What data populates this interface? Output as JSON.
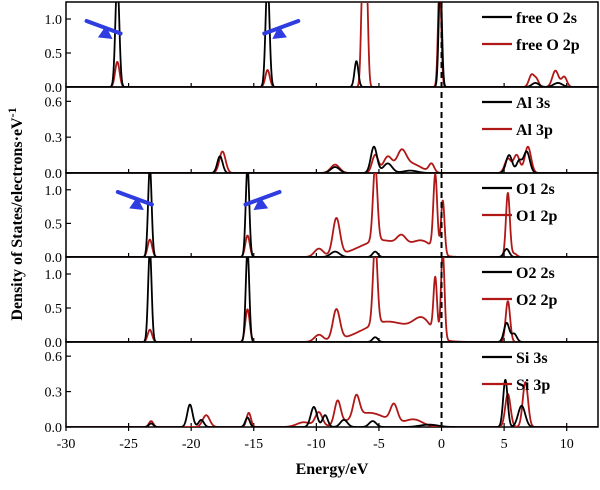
{
  "chart_data": {
    "type": "line",
    "xlabel": "Energy/eV",
    "ylabel": "Density of States/electrons·eV",
    "ylabel_exponent": "-1",
    "xlim": [
      -30,
      12.5
    ],
    "x_ticks": [
      -30,
      -25,
      -20,
      -15,
      -10,
      -5,
      0,
      5,
      10
    ],
    "x_tick_labels": [
      "-30",
      "-25",
      "-20",
      "-15",
      "-10",
      "-5",
      "0",
      "5",
      "10"
    ],
    "fermi_level": 0,
    "colors": {
      "s": "#000000",
      "p": "#b01818",
      "arrow": "#2f3ce0"
    },
    "panels": [
      {
        "id": "free-o",
        "ylim": [
          0,
          1.25
        ],
        "y_ticks": [
          0.0,
          0.5,
          1.0
        ],
        "y_tick_labels": [
          "0.0",
          "0.5",
          "1.0"
        ],
        "legend": [
          "free O 2s",
          "free O 2p"
        ],
        "arrows_at": [
          -25.8,
          -14.0
        ],
        "s_peaks": [
          {
            "x": -25.9,
            "h": 1.6,
            "w": 0.22
          },
          {
            "x": -13.9,
            "h": 1.6,
            "w": 0.22
          },
          {
            "x": -6.8,
            "h": 0.38,
            "w": 0.22
          },
          {
            "x": -0.1,
            "h": 1.6,
            "w": 0.18
          }
        ],
        "p_peaks": [
          {
            "x": -25.9,
            "h": 0.37,
            "w": 0.25
          },
          {
            "x": -13.9,
            "h": 0.25,
            "w": 0.25
          },
          {
            "x": -6.3,
            "h": 1.6,
            "w": 0.18
          },
          {
            "x": -6.0,
            "h": 1.6,
            "w": 0.18
          },
          {
            "x": -0.15,
            "h": 1.6,
            "w": 0.18
          },
          {
            "x": 7.2,
            "h": 0.18,
            "w": 0.3
          },
          {
            "x": 7.6,
            "h": 0.1,
            "w": 0.25
          },
          {
            "x": 9.1,
            "h": 0.24,
            "w": 0.35
          },
          {
            "x": 9.8,
            "h": 0.15,
            "w": 0.3
          }
        ],
        "s_bumps": [
          {
            "x": 7.5,
            "h": 0.06,
            "w": 0.4
          },
          {
            "x": 9.3,
            "h": 0.06,
            "w": 0.5
          }
        ],
        "p_bumps": []
      },
      {
        "id": "al",
        "ylim": [
          0,
          0.72
        ],
        "y_ticks": [
          0.0,
          0.3,
          0.6
        ],
        "y_tick_labels": [
          "0.0",
          "0.3",
          "0.6"
        ],
        "legend": [
          "Al 3s",
          "Al 3p"
        ],
        "arrows_at": [],
        "s_peaks": [
          {
            "x": -17.7,
            "h": 0.14,
            "w": 0.3
          },
          {
            "x": -8.5,
            "h": 0.05,
            "w": 0.5
          },
          {
            "x": -5.4,
            "h": 0.22,
            "w": 0.35
          },
          {
            "x": -4.3,
            "h": 0.08,
            "w": 0.5
          },
          {
            "x": -2.5,
            "h": 0.02,
            "w": 0.8
          },
          {
            "x": 5.4,
            "h": 0.15,
            "w": 0.35
          },
          {
            "x": 6.2,
            "h": 0.1,
            "w": 0.3
          },
          {
            "x": 6.8,
            "h": 0.18,
            "w": 0.35
          }
        ],
        "p_peaks": [
          {
            "x": -17.5,
            "h": 0.18,
            "w": 0.35
          },
          {
            "x": -8.5,
            "h": 0.07,
            "w": 0.5
          },
          {
            "x": -5.3,
            "h": 0.15,
            "w": 0.35
          },
          {
            "x": -4.3,
            "h": 0.13,
            "w": 0.5
          },
          {
            "x": -3.2,
            "h": 0.14,
            "w": 0.5
          },
          {
            "x": -0.8,
            "h": 0.07,
            "w": 0.3
          },
          {
            "x": 5.3,
            "h": 0.12,
            "w": 0.35
          },
          {
            "x": 6.0,
            "h": 0.15,
            "w": 0.35
          },
          {
            "x": 6.9,
            "h": 0.22,
            "w": 0.35
          }
        ],
        "s_bumps": [],
        "p_bumps": [
          {
            "x": -2.5,
            "h": 0.08,
            "w": 1.2
          }
        ]
      },
      {
        "id": "o1",
        "ylim": [
          0,
          1.25
        ],
        "y_ticks": [
          0.0,
          0.5,
          1.0
        ],
        "y_tick_labels": [
          "0.0",
          "0.5",
          "1.0"
        ],
        "legend": [
          "O1 2s",
          "O1 2p"
        ],
        "arrows_at": [
          -23.3,
          -15.5
        ],
        "s_peaks": [
          {
            "x": -23.3,
            "h": 1.35,
            "w": 0.2
          },
          {
            "x": -15.5,
            "h": 1.35,
            "w": 0.2
          },
          {
            "x": -8.5,
            "h": 0.08,
            "w": 0.5
          },
          {
            "x": -5.3,
            "h": 0.08,
            "w": 0.3
          },
          {
            "x": 5.2,
            "h": 0.12,
            "w": 0.3
          }
        ],
        "p_peaks": [
          {
            "x": -23.3,
            "h": 0.26,
            "w": 0.25
          },
          {
            "x": -15.5,
            "h": 0.32,
            "w": 0.25
          },
          {
            "x": -8.4,
            "h": 0.55,
            "w": 0.4
          },
          {
            "x": -5.3,
            "h": 1.12,
            "w": 0.25
          },
          {
            "x": -3.2,
            "h": 0.14,
            "w": 0.5
          },
          {
            "x": -0.5,
            "h": 1.12,
            "w": 0.22
          },
          {
            "x": 0.1,
            "h": 0.8,
            "w": 0.2
          },
          {
            "x": 5.3,
            "h": 0.95,
            "w": 0.22
          },
          {
            "x": 5.8,
            "h": 0.05,
            "w": 0.3
          }
        ],
        "s_bumps": [],
        "p_bumps": [
          {
            "x": -4.8,
            "h": 0.25,
            "w": 2.5
          },
          {
            "x": -1.5,
            "h": 0.2,
            "w": 1.2
          },
          {
            "x": -9.8,
            "h": 0.12,
            "w": 0.5
          }
        ]
      },
      {
        "id": "o2",
        "ylim": [
          0,
          1.25
        ],
        "y_ticks": [
          0.0,
          0.5,
          1.0
        ],
        "y_tick_labels": [
          "0.0",
          "0.5",
          "1.0"
        ],
        "legend": [
          "O2 2s",
          "O2 2p"
        ],
        "arrows_at": [],
        "s_peaks": [
          {
            "x": -23.3,
            "h": 1.35,
            "w": 0.2
          },
          {
            "x": -15.5,
            "h": 1.35,
            "w": 0.2
          },
          {
            "x": -5.3,
            "h": 0.07,
            "w": 0.3
          },
          {
            "x": 5.2,
            "h": 0.28,
            "w": 0.3
          },
          {
            "x": 5.8,
            "h": 0.12,
            "w": 0.3
          }
        ],
        "p_peaks": [
          {
            "x": -23.3,
            "h": 0.18,
            "w": 0.25
          },
          {
            "x": -15.5,
            "h": 0.48,
            "w": 0.25
          },
          {
            "x": -8.4,
            "h": 0.45,
            "w": 0.4
          },
          {
            "x": -5.3,
            "h": 1.2,
            "w": 0.25
          },
          {
            "x": -0.5,
            "h": 0.82,
            "w": 0.2
          },
          {
            "x": 0.1,
            "h": 1.28,
            "w": 0.2
          },
          {
            "x": 5.3,
            "h": 0.6,
            "w": 0.25
          }
        ],
        "s_bumps": [],
        "p_bumps": [
          {
            "x": -4.3,
            "h": 0.3,
            "w": 2.8
          },
          {
            "x": -1.5,
            "h": 0.25,
            "w": 1.0
          },
          {
            "x": -9.8,
            "h": 0.1,
            "w": 0.5
          }
        ]
      },
      {
        "id": "si",
        "ylim": [
          0,
          0.72
        ],
        "y_ticks": [
          0.0,
          0.3,
          0.6
        ],
        "y_tick_labels": [
          "0.0",
          "0.3",
          "0.6"
        ],
        "legend": [
          "Si 3s",
          "Si 3p"
        ],
        "arrows_at": [],
        "s_peaks": [
          {
            "x": -23.2,
            "h": 0.03,
            "w": 0.25
          },
          {
            "x": -20.1,
            "h": 0.19,
            "w": 0.3
          },
          {
            "x": -19.2,
            "h": 0.06,
            "w": 0.3
          },
          {
            "x": -15.5,
            "h": 0.08,
            "w": 0.25
          },
          {
            "x": -10.2,
            "h": 0.17,
            "w": 0.35
          },
          {
            "x": -9.3,
            "h": 0.1,
            "w": 0.3
          },
          {
            "x": -7.8,
            "h": 0.06,
            "w": 0.4
          },
          {
            "x": -5.5,
            "h": 0.05,
            "w": 0.4
          },
          {
            "x": 5.1,
            "h": 0.4,
            "w": 0.25
          },
          {
            "x": 6.4,
            "h": 0.18,
            "w": 0.4
          }
        ],
        "p_peaks": [
          {
            "x": -23.2,
            "h": 0.05,
            "w": 0.25
          },
          {
            "x": -18.8,
            "h": 0.1,
            "w": 0.4
          },
          {
            "x": -15.4,
            "h": 0.12,
            "w": 0.25
          },
          {
            "x": -9.8,
            "h": 0.12,
            "w": 0.4
          },
          {
            "x": -8.3,
            "h": 0.2,
            "w": 0.35
          },
          {
            "x": -6.8,
            "h": 0.18,
            "w": 0.35
          },
          {
            "x": -3.8,
            "h": 0.15,
            "w": 0.4
          },
          {
            "x": 5.3,
            "h": 0.28,
            "w": 0.3
          },
          {
            "x": 6.7,
            "h": 0.38,
            "w": 0.3
          }
        ],
        "s_bumps": [
          {
            "x": -1.0,
            "h": 0.02,
            "w": 1.0
          }
        ],
        "p_bumps": [
          {
            "x": -5.8,
            "h": 0.12,
            "w": 2.0
          },
          {
            "x": -2.2,
            "h": 0.06,
            "w": 1.0
          },
          {
            "x": -11.0,
            "h": 0.04,
            "w": 0.8
          }
        ]
      }
    ]
  }
}
